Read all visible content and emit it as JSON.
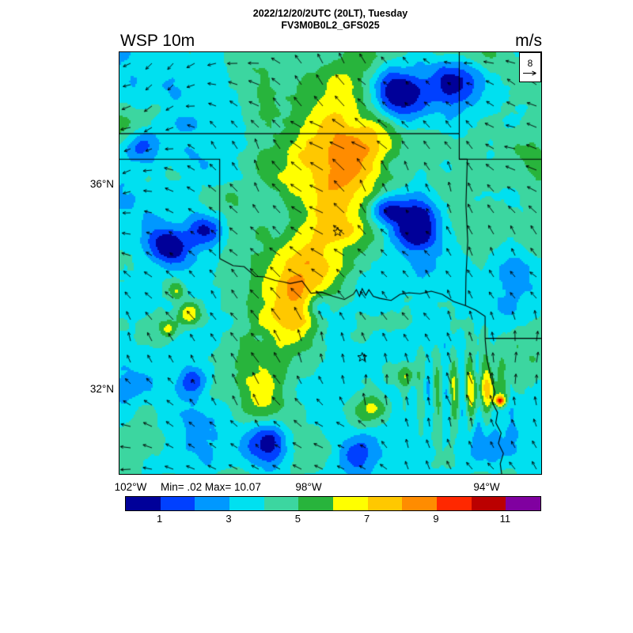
{
  "header": {
    "title_line1": "2022/12/20/2UTC (20LT), Tuesday",
    "title_line2": "FV3M0B0L2_GFS025",
    "variable_label": "WSP 10m",
    "units_label": "m/s"
  },
  "map": {
    "ref_vector": {
      "value": "8"
    },
    "markers": [
      {
        "name": "star-marker-okc",
        "lat": 35.08,
        "lon": 97.35
      },
      {
        "name": "star-marker-dfw",
        "lat": 32.63,
        "lon": 96.8
      }
    ]
  },
  "axes": {
    "lat_ticks": [
      {
        "label": "36°N",
        "lat": 36
      },
      {
        "label": "32°N",
        "lat": 32
      }
    ],
    "lon_ticks": [
      {
        "label": "102°W",
        "lon": 102
      },
      {
        "label": "98°W",
        "lon": 98
      },
      {
        "label": "94°W",
        "lon": 94
      }
    ]
  },
  "stats": {
    "minmax": "Min= .02 Max= 10.07"
  },
  "colorbar": {
    "tick_levels": [
      1,
      3,
      5,
      7,
      9,
      11
    ],
    "tick_labels": [
      "1",
      "3",
      "5",
      "7",
      "9",
      "11"
    ],
    "n_segments": 12
  },
  "chart_data": {
    "type": "heatmap",
    "title": "2022/12/20/2UTC (20LT), Tuesday",
    "subtitle": "FV3M0B0L2_GFS025",
    "variable": "WSP 10m",
    "units": "m/s",
    "min": 0.02,
    "max": 10.07,
    "reference_vector_m_s": 8,
    "lon_range_deg_west": [
      102.25,
      92.78
    ],
    "lat_range_deg_north": [
      30.35,
      38.59
    ],
    "lon_tick_deg_west": [
      102,
      98,
      94
    ],
    "lat_tick_deg_north": [
      36,
      32
    ],
    "contour_levels": [
      1,
      2,
      3,
      4,
      5,
      6,
      7,
      8,
      9,
      10,
      11
    ],
    "colors": [
      "#000099",
      "#0040ff",
      "#0098ff",
      "#00e0f0",
      "#3cd6a0",
      "#28b43c",
      "#ffff00",
      "#ffc800",
      "#ff8c00",
      "#ff2800",
      "#bb0000",
      "#8000a0"
    ],
    "legend_position": "bottom",
    "grid": false,
    "overlays": [
      "wind-vectors",
      "state-boundaries",
      "star-markers"
    ]
  }
}
